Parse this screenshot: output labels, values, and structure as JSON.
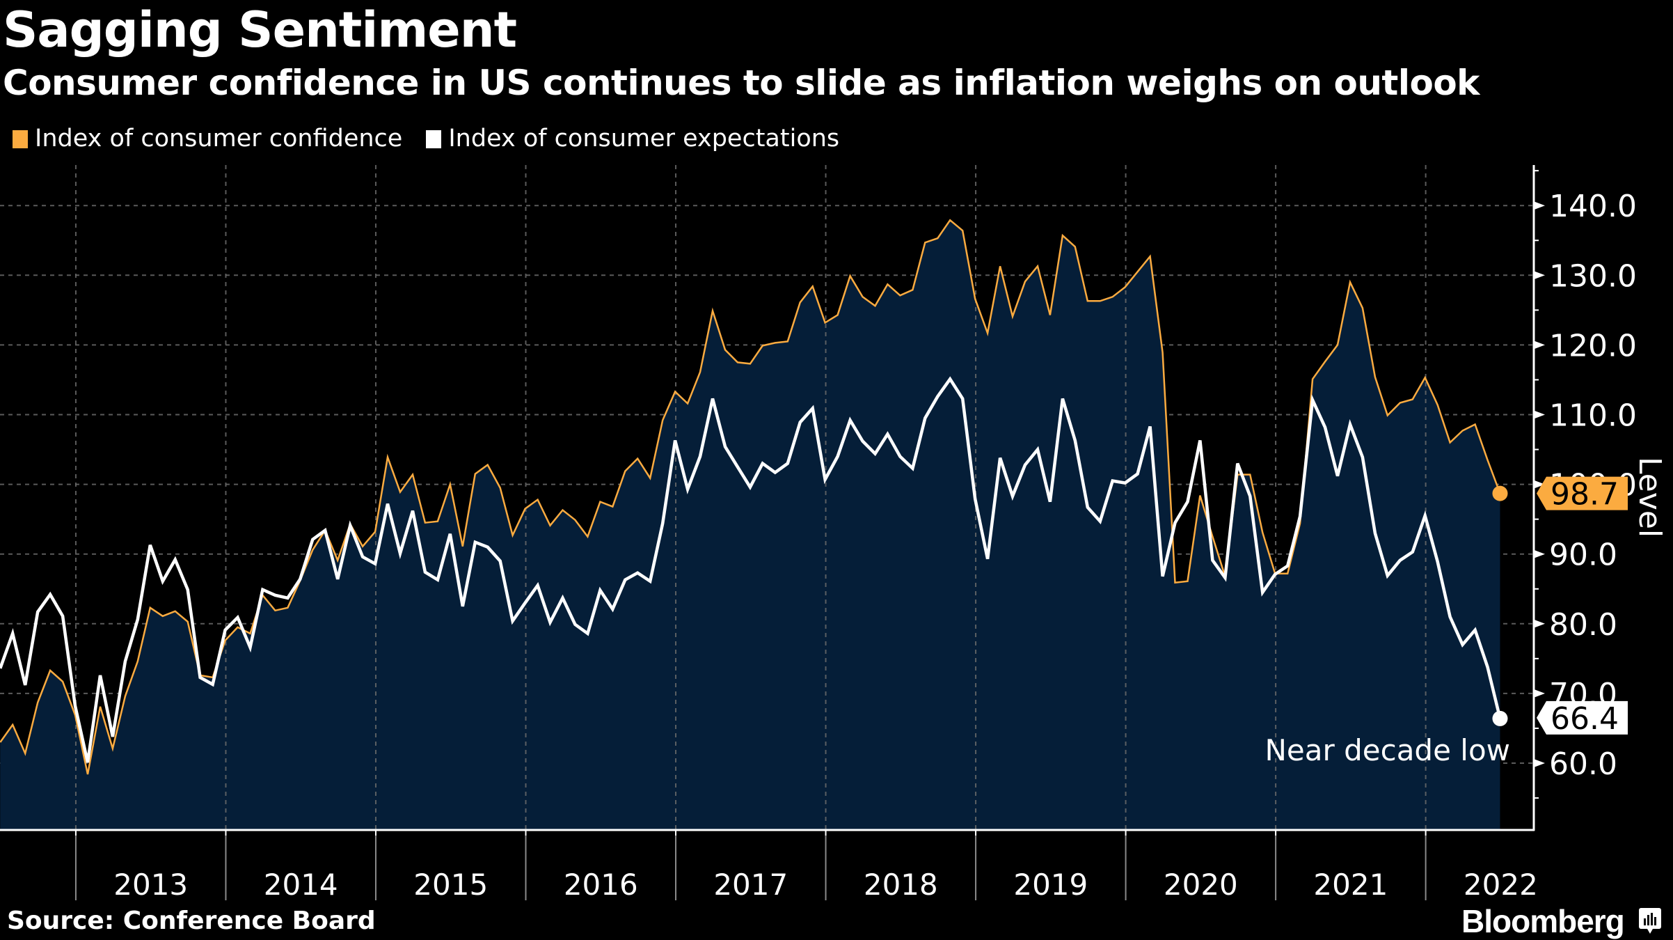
{
  "header": {
    "title": "Sagging Sentiment",
    "subtitle": "Consumer confidence in US continues to slide as inflation weighs on outlook"
  },
  "legend": [
    {
      "label": "Index of consumer confidence",
      "color": "#fbab40"
    },
    {
      "label": "Index of consumer expectations",
      "color": "#ffffff"
    }
  ],
  "footer": {
    "source": "Source: Conference Board",
    "brand": "Bloomberg",
    "brand_icon": "bloomberg-chart-icon"
  },
  "colors": {
    "background": "#000000",
    "fill": "#051e38",
    "confidence": "#fbab40",
    "expectations": "#ffffff",
    "grid": "#6b6b6b",
    "divider": "#8a8a8a"
  },
  "chart_data": {
    "type": "line",
    "title": "Sagging Sentiment",
    "subtitle": "Consumer confidence in US continues to slide as inflation weighs on outlook",
    "xlabel": "",
    "ylabel": "Level",
    "y_axis_side": "right",
    "ylim": [
      50,
      145
    ],
    "yticks": [
      60,
      70,
      80,
      90,
      100,
      110,
      120,
      130,
      140
    ],
    "ytick_labels": [
      "60.0",
      "70.0",
      "80.0",
      "90.0",
      "100.0",
      "110.0",
      "120.0",
      "130.0",
      "140.0"
    ],
    "x_start": "2012-07",
    "x_end": "2022-06",
    "frequency": "monthly",
    "xtick_labels": [
      "2013",
      "2014",
      "2015",
      "2016",
      "2017",
      "2018",
      "2019",
      "2020",
      "2021",
      "2022"
    ],
    "grid": true,
    "legend_position": "top-left",
    "series": [
      {
        "name": "Index of consumer confidence",
        "color": "#fbab40",
        "filled": true,
        "values": [
          63.0,
          65.5,
          61.4,
          68.7,
          73.3,
          71.7,
          66.9,
          58.4,
          68.1,
          62.1,
          69.6,
          74.6,
          82.3,
          81.1,
          81.8,
          80.3,
          72.6,
          72.3,
          77.6,
          79.5,
          78.6,
          84.1,
          81.9,
          82.3,
          86.2,
          90.6,
          93.4,
          89.1,
          94.3,
          91.1,
          93.2,
          103.9,
          98.9,
          101.4,
          94.5,
          94.7,
          100.0,
          91.1,
          101.5,
          102.8,
          99.5,
          92.7,
          96.5,
          97.8,
          94.1,
          96.3,
          94.9,
          92.5,
          97.5,
          96.8,
          101.9,
          103.7,
          100.9,
          109.2,
          113.3,
          111.6,
          116.1,
          124.9,
          119.3,
          117.5,
          117.3,
          119.9,
          120.3,
          120.5,
          126.1,
          128.4,
          123.2,
          124.3,
          129.9,
          126.9,
          125.6,
          128.7,
          127.1,
          127.9,
          134.7,
          135.3,
          137.9,
          136.4,
          126.6,
          121.7,
          131.3,
          124.1,
          129.1,
          131.3,
          124.3,
          135.7,
          134.1,
          126.3,
          126.3,
          126.9,
          128.3,
          130.5,
          132.7,
          118.9,
          85.9,
          86.1,
          98.4,
          92.5,
          86.8,
          101.4,
          101.4,
          93.1,
          87.2,
          87.2,
          94.4,
          115.1,
          117.6,
          120.0,
          129.0,
          125.3,
          115.4,
          109.9,
          111.7,
          112.2,
          115.3,
          111.4,
          106.0,
          107.7,
          108.6,
          103.5,
          98.7
        ],
        "last_value_label": "98.7"
      },
      {
        "name": "Index of consumer expectations",
        "color": "#ffffff",
        "filled": false,
        "values": [
          73.6,
          78.6,
          71.2,
          81.7,
          84.2,
          81.1,
          68.2,
          60.1,
          72.6,
          63.8,
          74.6,
          80.6,
          91.3,
          86.1,
          89.2,
          84.9,
          72.3,
          71.3,
          79.1,
          80.9,
          76.6,
          84.9,
          84.1,
          83.7,
          86.4,
          92.1,
          93.4,
          86.4,
          94.1,
          89.6,
          88.6,
          97.2,
          90.1,
          96.2,
          87.4,
          86.3,
          92.9,
          82.5,
          91.7,
          91.0,
          89.0,
          80.4,
          83.0,
          85.5,
          80.2,
          83.7,
          79.9,
          78.6,
          84.8,
          82.1,
          86.3,
          87.3,
          86.1,
          94.4,
          106.3,
          99.3,
          104.0,
          112.3,
          105.4,
          102.5,
          99.6,
          103.0,
          101.7,
          103.0,
          108.9,
          110.9,
          100.7,
          104.0,
          109.2,
          106.2,
          104.4,
          107.2,
          104.0,
          102.3,
          109.5,
          112.6,
          115.1,
          112.3,
          97.9,
          89.3,
          103.8,
          98.3,
          102.8,
          105.0,
          97.5,
          112.3,
          106.3,
          96.7,
          94.7,
          100.5,
          100.2,
          101.5,
          108.3,
          86.8,
          94.5,
          97.5,
          106.3,
          89.1,
          86.6,
          103.0,
          98.3,
          84.5,
          87.1,
          88.3,
          95.4,
          112.1,
          108.2,
          101.2,
          108.6,
          103.9,
          93.0,
          86.9,
          89.1,
          90.3,
          95.5,
          88.9,
          81.0,
          77.0,
          79.1,
          73.8,
          66.4
        ],
        "last_value_label": "66.4"
      }
    ],
    "annotations": [
      {
        "text": "Near decade low",
        "attached_to": "Index of consumer expectations",
        "at": "2022-06"
      }
    ]
  }
}
